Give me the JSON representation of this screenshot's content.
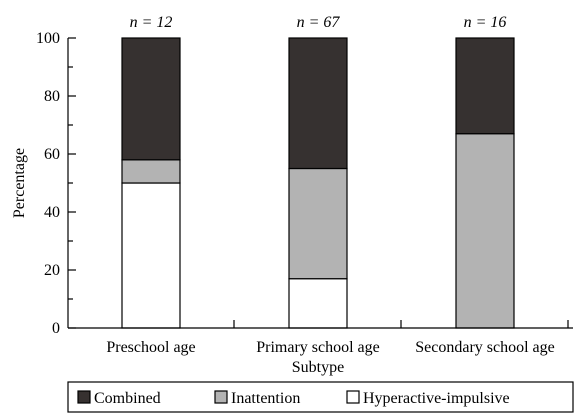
{
  "chart_data": {
    "type": "bar",
    "stacked": true,
    "categories": [
      "Preschool age",
      "Primary school age",
      "Secondary school age"
    ],
    "n_labels": [
      "n = 12",
      "n = 67",
      "n = 16"
    ],
    "series": [
      {
        "name": "Hyperactive-impulsive",
        "values": [
          50,
          17,
          0
        ],
        "color": "#ffffff"
      },
      {
        "name": "Inattention",
        "values": [
          8,
          38,
          67
        ],
        "color": "#b3b3b3"
      },
      {
        "name": "Combined",
        "values": [
          42,
          45,
          33
        ],
        "color": "#363130"
      }
    ],
    "legend_order": [
      "Combined",
      "Inattention",
      "Hyperactive-impulsive"
    ],
    "legend_placement": "bottom",
    "xlabel": "Subtype",
    "ylabel": "Percentage",
    "ylim": [
      0,
      100
    ],
    "yticks": [
      0,
      20,
      40,
      60,
      80,
      100
    ],
    "grid": false
  }
}
